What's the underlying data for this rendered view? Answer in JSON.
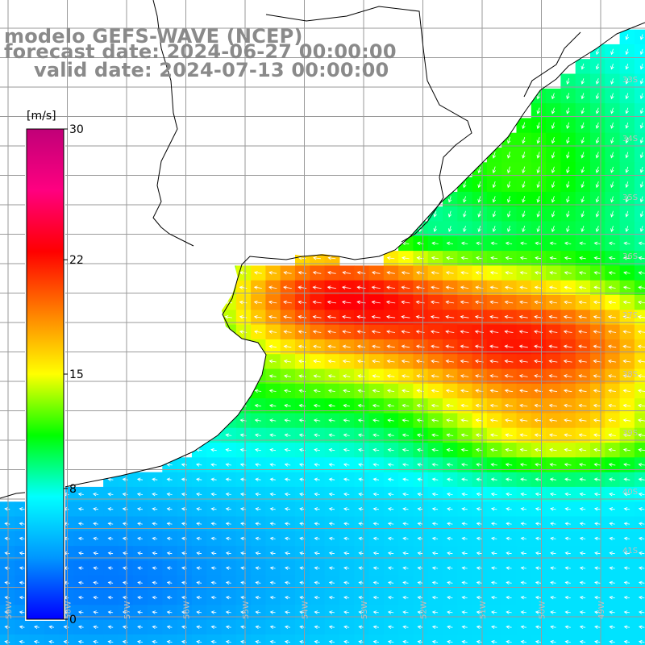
{
  "title": {
    "line1": "modelo GEFS-WAVE (NCEP)",
    "line2": "forecast date: 2024-06-27 00:00:00",
    "line3": "valid date: 2024-07-13 00:00:00"
  },
  "colorbar": {
    "unit": "[m/s]",
    "ticks": [
      {
        "value": 30,
        "label": "30"
      },
      {
        "value": 22,
        "label": "22"
      },
      {
        "value": 15,
        "label": "15"
      },
      {
        "value": 8,
        "label": "8"
      },
      {
        "value": 0,
        "label": "0"
      }
    ],
    "range": [
      0,
      30
    ],
    "colors": [
      "#0000ff",
      "#0096ff",
      "#00ffff",
      "#00ff00",
      "#ffff00",
      "#ff8000",
      "#ff0000",
      "#ff0080",
      "#c00078"
    ]
  },
  "map": {
    "latitude_labels": [
      "33S",
      "34S",
      "35S",
      "36S",
      "37S",
      "38S",
      "39S",
      "40S",
      "41S"
    ],
    "longitude_labels": [
      "59W",
      "58W",
      "57W",
      "56W",
      "55W",
      "54W",
      "53W",
      "52W",
      "51W",
      "50W",
      "49W"
    ],
    "land_color": "#ffffff",
    "grid_color": "#9a9a9a",
    "coast_color": "#000000",
    "arrow_color": "#ffffff"
  }
}
